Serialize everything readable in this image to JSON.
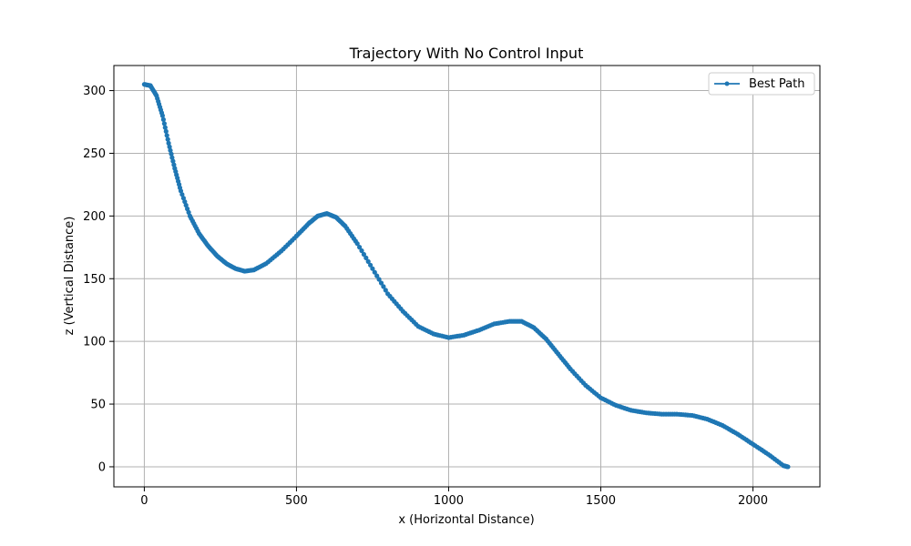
{
  "chart_data": {
    "type": "line",
    "title": "Trajectory With No Control Input",
    "xlabel": "x (Horizontal Distance)",
    "ylabel": "z (Vertical Distance)",
    "xlim": [
      -100,
      2220
    ],
    "ylim": [
      -16,
      320
    ],
    "xticks": [
      0,
      500,
      1000,
      1500,
      2000
    ],
    "yticks": [
      0,
      50,
      100,
      150,
      200,
      250,
      300
    ],
    "grid": true,
    "legend_position": "top-right",
    "colors": {
      "series": "#1f77b4",
      "grid": "#b0b0b0"
    },
    "series": [
      {
        "name": "Best Path",
        "marker": "circle",
        "points": [
          [
            0,
            305
          ],
          [
            20,
            304
          ],
          [
            40,
            296
          ],
          [
            60,
            280
          ],
          [
            80,
            258
          ],
          [
            100,
            238
          ],
          [
            120,
            220
          ],
          [
            150,
            200
          ],
          [
            180,
            186
          ],
          [
            210,
            176
          ],
          [
            240,
            168
          ],
          [
            270,
            162
          ],
          [
            300,
            158
          ],
          [
            330,
            156
          ],
          [
            360,
            157
          ],
          [
            400,
            162
          ],
          [
            450,
            172
          ],
          [
            500,
            184
          ],
          [
            540,
            194
          ],
          [
            570,
            200
          ],
          [
            600,
            202
          ],
          [
            630,
            199
          ],
          [
            660,
            192
          ],
          [
            700,
            178
          ],
          [
            750,
            158
          ],
          [
            800,
            138
          ],
          [
            850,
            124
          ],
          [
            900,
            112
          ],
          [
            950,
            106
          ],
          [
            1000,
            103
          ],
          [
            1050,
            105
          ],
          [
            1100,
            109
          ],
          [
            1150,
            114
          ],
          [
            1200,
            116
          ],
          [
            1240,
            116
          ],
          [
            1280,
            111
          ],
          [
            1320,
            102
          ],
          [
            1360,
            90
          ],
          [
            1400,
            78
          ],
          [
            1450,
            65
          ],
          [
            1500,
            55
          ],
          [
            1550,
            49
          ],
          [
            1600,
            45
          ],
          [
            1650,
            43
          ],
          [
            1700,
            42
          ],
          [
            1750,
            42
          ],
          [
            1800,
            41
          ],
          [
            1850,
            38
          ],
          [
            1900,
            33
          ],
          [
            1950,
            26
          ],
          [
            2000,
            18
          ],
          [
            2050,
            10
          ],
          [
            2100,
            1
          ],
          [
            2115,
            0
          ]
        ]
      }
    ]
  }
}
